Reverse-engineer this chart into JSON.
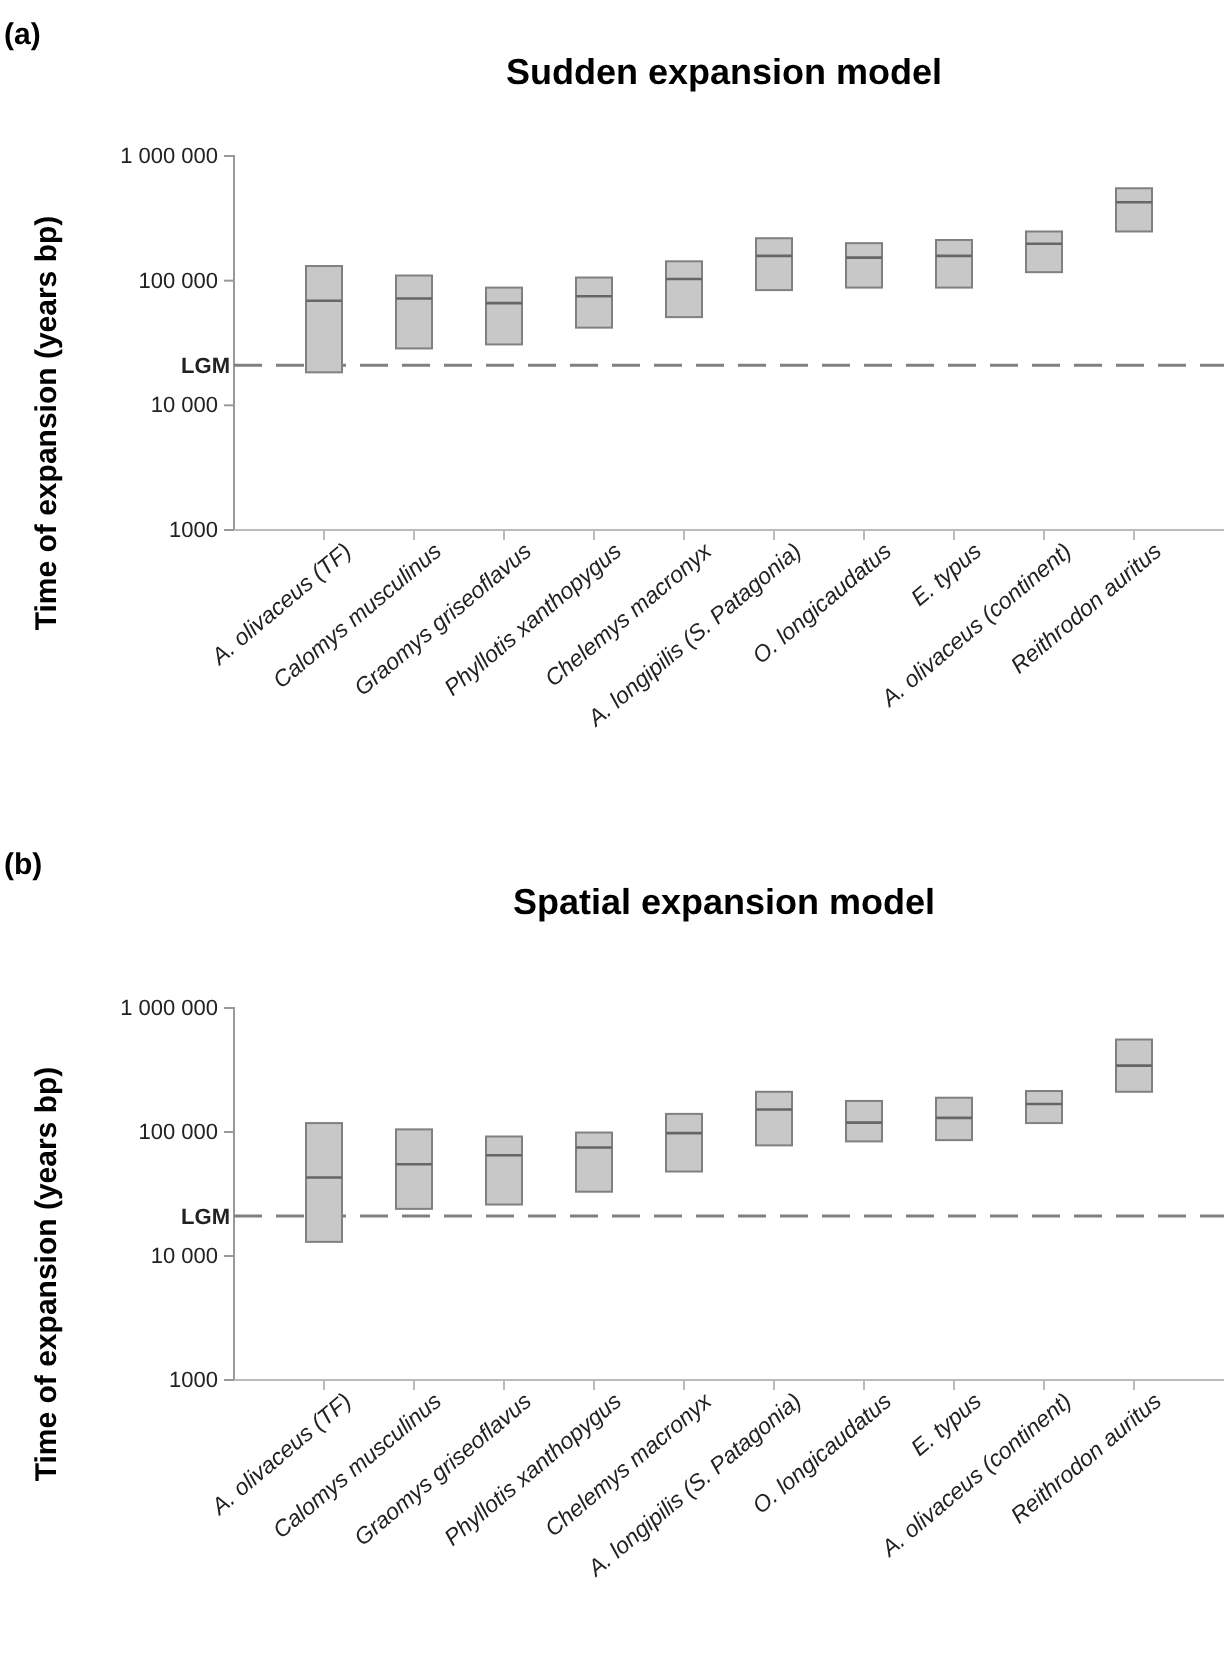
{
  "chart_data": [
    {
      "type": "box",
      "title": "Sudden expansion model",
      "ylabel": "Time of expansion (years bp)",
      "annotations": [
        "(a)"
      ],
      "log": true,
      "grid": false,
      "ylim": [
        1000,
        1000000
      ],
      "yticks": [
        1000,
        {
          "value": 10000,
          "label": "10 000"
        },
        {
          "value": 100000,
          "label": "100 000"
        },
        {
          "value": 1000000,
          "label": "1 000 000"
        }
      ],
      "categories": [
        "A. olivaceus (TF)",
        "Calomys musculinus",
        "Graomys griseoflavus",
        "Phyllotis xanthopygus",
        "Chelemys macronyx",
        "A. longipilis (S. Patagonia)",
        "O. longicaudatus",
        "E. typus",
        "A. olivaceus (continent)",
        "Reithrodon auritus"
      ],
      "color": "#c8c8c8",
      "boxes": [
        {
          "low": 18400,
          "q1": 18400,
          "median": 69000,
          "q3": 131000,
          "high": 131000
        },
        {
          "low": 28600,
          "q1": 28600,
          "median": 72000,
          "q3": 110000,
          "high": 110000
        },
        {
          "low": 30800,
          "q1": 30800,
          "median": 66000,
          "q3": 88000,
          "high": 88000
        },
        {
          "low": 42000,
          "q1": 42000,
          "median": 75000,
          "q3": 106000,
          "high": 106000
        },
        {
          "low": 51000,
          "q1": 51000,
          "median": 103000,
          "q3": 143000,
          "high": 143000
        },
        {
          "low": 84000,
          "q1": 84000,
          "median": 158000,
          "q3": 219000,
          "high": 219000
        },
        {
          "low": 88000,
          "q1": 88000,
          "median": 153000,
          "q3": 200000,
          "high": 200000
        },
        {
          "low": 88000,
          "q1": 88000,
          "median": 158000,
          "q3": 212000,
          "high": 212000
        },
        {
          "low": 117000,
          "q1": 117000,
          "median": 198000,
          "q3": 248000,
          "high": 248000
        },
        {
          "low": 248000,
          "q1": 248000,
          "median": 426000,
          "q3": 551000,
          "high": 551000
        }
      ],
      "ref_lines": [
        {
          "axis": "y",
          "value": 21000,
          "label": "LGM",
          "color": "#808080",
          "line_style": "dashed"
        }
      ]
    },
    {
      "type": "box",
      "title": "Spatial expansion model",
      "ylabel": "Time of expansion (years bp)",
      "annotations": [
        "(b)"
      ],
      "log": true,
      "grid": false,
      "ylim": [
        1000,
        1000000
      ],
      "yticks": [
        1000,
        {
          "value": 10000,
          "label": "10 000"
        },
        {
          "value": 100000,
          "label": "100 000"
        },
        {
          "value": 1000000,
          "label": "1 000 000"
        }
      ],
      "categories": [
        "A. olivaceus (TF)",
        "Calomys musculinus",
        "Graomys griseoflavus",
        "Phyllotis xanthopygus",
        "Chelemys macronyx",
        "A. longipilis (S. Patagonia)",
        "O. longicaudatus",
        "E. typus",
        "A. olivaceus (continent)",
        "Reithrodon auritus"
      ],
      "color": "#c8c8c8",
      "boxes": [
        {
          "low": 13000,
          "q1": 13000,
          "median": 43000,
          "q3": 118000,
          "high": 118000
        },
        {
          "low": 24000,
          "q1": 24000,
          "median": 55000,
          "q3": 105000,
          "high": 105000
        },
        {
          "low": 26000,
          "q1": 26000,
          "median": 65000,
          "q3": 92000,
          "high": 92000
        },
        {
          "low": 33000,
          "q1": 33000,
          "median": 75000,
          "q3": 99000,
          "high": 99000
        },
        {
          "low": 48000,
          "q1": 48000,
          "median": 98000,
          "q3": 140000,
          "high": 140000
        },
        {
          "low": 78000,
          "q1": 78000,
          "median": 152000,
          "q3": 211000,
          "high": 211000
        },
        {
          "low": 84000,
          "q1": 84000,
          "median": 119000,
          "q3": 178000,
          "high": 178000
        },
        {
          "low": 86000,
          "q1": 86000,
          "median": 130000,
          "q3": 189000,
          "high": 189000
        },
        {
          "low": 118000,
          "q1": 118000,
          "median": 168000,
          "q3": 214000,
          "high": 214000
        },
        {
          "low": 211000,
          "q1": 211000,
          "median": 343000,
          "q3": 557000,
          "high": 557000
        }
      ],
      "ref_lines": [
        {
          "axis": "y",
          "value": 21000,
          "label": "LGM",
          "color": "#808080",
          "line_style": "dashed"
        }
      ]
    }
  ]
}
